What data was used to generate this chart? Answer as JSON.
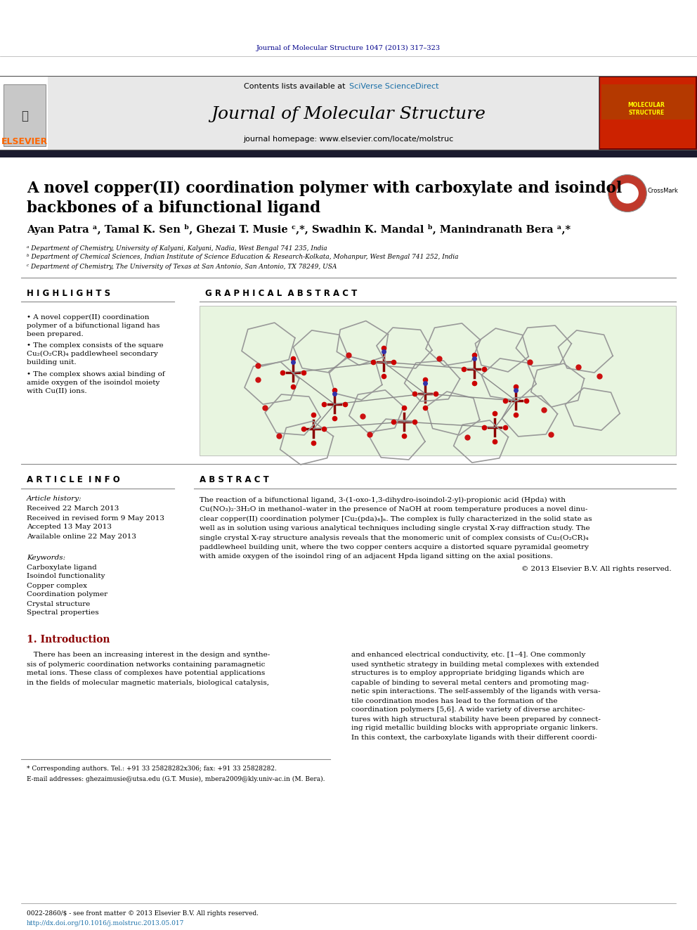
{
  "fig_width": 9.92,
  "fig_height": 13.23,
  "bg_color": "#ffffff",
  "header_bg": "#e8e8e8",
  "journal_citation": "Journal of Molecular Structure 1047 (2013) 317–323",
  "journal_citation_color": "#00008B",
  "contents_text": "Contents lists available at ",
  "sciverse_text": "SciVerse ScienceDirect",
  "sciverse_color": "#1a6fa8",
  "journal_name": "Journal of Molecular Structure",
  "journal_homepage": "journal homepage: www.elsevier.com/locate/molstruc",
  "elsevier_color": "#FF6600",
  "elsevier_text": "ELSEVIER",
  "title_line1": "A novel copper(II) coordination polymer with carboxylate and isoindol",
  "title_line2": "backbones of a bifunctional ligand",
  "authors": "Ayan Patra ᵃ, Tamal K. Sen ᵇ, Ghezai T. Musie ᶜ,*, Swadhin K. Mandal ᵇ, Manindranath Bera ᵃ,*",
  "affil_a": "ᵃ Department of Chemistry, University of Kalyani, Kalyani, Nadia, West Bengal 741 235, India",
  "affil_b": "ᵇ Department of Chemical Sciences, Indian Institute of Science Education & Research-Kolkata, Mohanpur, West Bengal 741 252, India",
  "affil_c": "ᶜ Department of Chemistry, The University of Texas at San Antonio, San Antonio, TX 78249, USA",
  "highlights_title": "H I G H L I G H T S",
  "highlights_wrapped": [
    "A novel copper(II) coordination\npolymer of a bifunctional ligand has\nbeen prepared.",
    "The complex consists of the square\nCu₂(O₂CR)₄ paddlewheel secondary\nbuilding unit.",
    "The complex shows axial binding of\namide oxygen of the isoindol moiety\nwith Cu(II) ions."
  ],
  "graphical_abstract_title": "G R A P H I C A L  A B S T R A C T",
  "graphical_abstract_bg": "#e8f5e0",
  "article_info_title": "A R T I C L E  I N F O",
  "article_history_title": "Article history:",
  "received": "Received 22 March 2013",
  "revised": "Received in revised form 9 May 2013",
  "accepted": "Accepted 13 May 2013",
  "available": "Available online 22 May 2013",
  "keywords_title": "Keywords:",
  "keywords": [
    "Carboxylate ligand",
    "Isoindol functionality",
    "Copper complex",
    "Coordination polymer",
    "Crystal structure",
    "Spectral properties"
  ],
  "abstract_title": "A B S T R A C T",
  "abstract_lines": [
    "The reaction of a bifunctional ligand, 3-(1-oxo-1,3-dihydro-isoindol-2-yl)-propionic acid (Hpda) with",
    "Cu(NO₃)₂·3H₂O in methanol–water in the presence of NaOH at room temperature produces a novel dinu-",
    "clear copper(II) coordination polymer [Cu₂(pda)₄]ₙ. The complex is fully characterized in the solid state as",
    "well as in solution using various analytical techniques including single crystal X-ray diffraction study. The",
    "single crystal X-ray structure analysis reveals that the monomeric unit of complex consists of Cu₂(O₂CR)₄",
    "paddlewheel building unit, where the two copper centers acquire a distorted square pyramidal geometry",
    "with amide oxygen of the isoindol ring of an adjacent Hpda ligand sitting on the axial positions."
  ],
  "abstract_copyright": "© 2013 Elsevier B.V. All rights reserved.",
  "intro_title": "1. Introduction",
  "intro_color": "#8B0000",
  "intro_lines_left": [
    "   There has been an increasing interest in the design and synthe-",
    "sis of polymeric coordination networks containing paramagnetic",
    "metal ions. These class of complexes have potential applications",
    "in the fields of molecular magnetic materials, biological catalysis,"
  ],
  "intro_lines_right": [
    "and enhanced electrical conductivity, etc. [1–4]. One commonly",
    "used synthetic strategy in building metal complexes with extended",
    "structures is to employ appropriate bridging ligands which are",
    "capable of binding to several metal centers and promoting mag-",
    "netic spin interactions. The self-assembly of the ligands with versa-",
    "tile coordination modes has lead to the formation of the",
    "coordination polymers [5,6]. A wide variety of diverse architec-",
    "tures with high structural stability have been prepared by connect-",
    "ing rigid metallic building blocks with appropriate organic linkers.",
    "In this context, the carboxylate ligands with their different coordi-"
  ],
  "footnote1": "* Corresponding authors. Tel.: +91 33 25828282x306; fax: +91 33 25828282.",
  "footnote2": "E-mail addresses: ghezaimusie@utsa.edu (G.T. Musie), mbera2009@kly.univ-ac.in (M. Bera).",
  "footer1": "0022-2860/$ - see front matter © 2013 Elsevier B.V. All rights reserved.",
  "footer2": "http://dx.doi.org/10.1016/j.molstruc.2013.05.017",
  "footer2_color": "#1a6fa8",
  "thick_bar_color": "#1a1a2e",
  "text_color": "#000000",
  "label_color": "#00008B"
}
